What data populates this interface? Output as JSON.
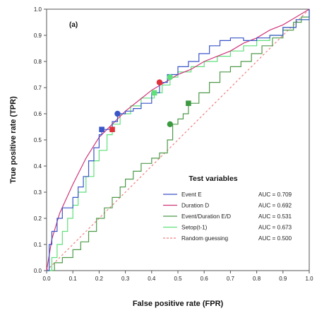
{
  "chart_data": {
    "type": "line",
    "panel_label": "(a)",
    "xlabel": "False positive rate (FPR)",
    "ylabel": "True positive rate (TPR)",
    "xlim": [
      0,
      1
    ],
    "ylim": [
      0,
      1
    ],
    "x_ticks": [
      "0.0",
      "0.1",
      "0.2",
      "0.3",
      "0.4",
      "0.5",
      "0.6",
      "0.7",
      "0.8",
      "0.9",
      "1.0"
    ],
    "y_ticks": [
      "0.0",
      "0.1",
      "0.2",
      "0.3",
      "0.4",
      "0.5",
      "0.6",
      "0.7",
      "0.8",
      "0.9",
      "1.0"
    ],
    "legend": {
      "title": "Test variables",
      "placement": "bottom-right"
    },
    "series": [
      {
        "name": "Event E",
        "auc": "AUC = 0.709",
        "color": "#3a55c8",
        "style": "step",
        "points": [
          [
            0,
            0
          ],
          [
            0.01,
            0.1
          ],
          [
            0.02,
            0.15
          ],
          [
            0.04,
            0.2
          ],
          [
            0.06,
            0.24
          ],
          [
            0.09,
            0.24
          ],
          [
            0.1,
            0.28
          ],
          [
            0.12,
            0.32
          ],
          [
            0.14,
            0.36
          ],
          [
            0.16,
            0.42
          ],
          [
            0.18,
            0.47
          ],
          [
            0.2,
            0.52
          ],
          [
            0.21,
            0.54
          ],
          [
            0.25,
            0.57
          ],
          [
            0.27,
            0.6
          ],
          [
            0.3,
            0.61
          ],
          [
            0.33,
            0.62
          ],
          [
            0.36,
            0.64
          ],
          [
            0.4,
            0.68
          ],
          [
            0.43,
            0.72
          ],
          [
            0.46,
            0.75
          ],
          [
            0.5,
            0.78
          ],
          [
            0.54,
            0.8
          ],
          [
            0.58,
            0.83
          ],
          [
            0.62,
            0.86
          ],
          [
            0.66,
            0.88
          ],
          [
            0.7,
            0.89
          ],
          [
            0.75,
            0.88
          ],
          [
            0.8,
            0.89
          ],
          [
            0.85,
            0.9
          ],
          [
            0.9,
            0.93
          ],
          [
            0.95,
            0.96
          ],
          [
            1,
            1
          ]
        ]
      },
      {
        "name": "Duration D",
        "auc": "AUC = 0.692",
        "color": "#d0357a",
        "style": "smooth",
        "points": [
          [
            0,
            0
          ],
          [
            0.02,
            0.12
          ],
          [
            0.05,
            0.22
          ],
          [
            0.1,
            0.33
          ],
          [
            0.15,
            0.43
          ],
          [
            0.2,
            0.51
          ],
          [
            0.25,
            0.56
          ],
          [
            0.3,
            0.61
          ],
          [
            0.35,
            0.65
          ],
          [
            0.4,
            0.69
          ],
          [
            0.45,
            0.72
          ],
          [
            0.5,
            0.75
          ],
          [
            0.55,
            0.77
          ],
          [
            0.6,
            0.8
          ],
          [
            0.65,
            0.82
          ],
          [
            0.7,
            0.84
          ],
          [
            0.75,
            0.87
          ],
          [
            0.8,
            0.89
          ],
          [
            0.85,
            0.92
          ],
          [
            0.9,
            0.94
          ],
          [
            0.95,
            0.97
          ],
          [
            1,
            1
          ]
        ]
      },
      {
        "name": "Event/Duration E/D",
        "auc": "AUC = 0.531",
        "color": "#4e9a4a",
        "style": "step",
        "points": [
          [
            0,
            0
          ],
          [
            0.03,
            0.03
          ],
          [
            0.06,
            0.05
          ],
          [
            0.1,
            0.08
          ],
          [
            0.13,
            0.11
          ],
          [
            0.16,
            0.15
          ],
          [
            0.19,
            0.2
          ],
          [
            0.22,
            0.24
          ],
          [
            0.25,
            0.28
          ],
          [
            0.28,
            0.32
          ],
          [
            0.3,
            0.35
          ],
          [
            0.33,
            0.38
          ],
          [
            0.36,
            0.41
          ],
          [
            0.4,
            0.43
          ],
          [
            0.43,
            0.45
          ],
          [
            0.46,
            0.5
          ],
          [
            0.48,
            0.56
          ],
          [
            0.5,
            0.58
          ],
          [
            0.52,
            0.6
          ],
          [
            0.54,
            0.64
          ],
          [
            0.58,
            0.68
          ],
          [
            0.62,
            0.72
          ],
          [
            0.66,
            0.76
          ],
          [
            0.7,
            0.78
          ],
          [
            0.74,
            0.8
          ],
          [
            0.78,
            0.83
          ],
          [
            0.82,
            0.86
          ],
          [
            0.86,
            0.89
          ],
          [
            0.9,
            0.92
          ],
          [
            0.94,
            0.95
          ],
          [
            0.97,
            0.97
          ],
          [
            1,
            1
          ]
        ]
      },
      {
        "name": "Setop(t-1)",
        "auc": "AUC = 0.673",
        "color": "#5fe07a",
        "style": "step",
        "points": [
          [
            0,
            0
          ],
          [
            0.02,
            0.05
          ],
          [
            0.04,
            0.1
          ],
          [
            0.06,
            0.15
          ],
          [
            0.08,
            0.2
          ],
          [
            0.1,
            0.25
          ],
          [
            0.12,
            0.3
          ],
          [
            0.15,
            0.36
          ],
          [
            0.18,
            0.42
          ],
          [
            0.2,
            0.46
          ],
          [
            0.23,
            0.52
          ],
          [
            0.25,
            0.56
          ],
          [
            0.28,
            0.6
          ],
          [
            0.32,
            0.63
          ],
          [
            0.36,
            0.66
          ],
          [
            0.41,
            0.68
          ],
          [
            0.44,
            0.71
          ],
          [
            0.47,
            0.74
          ],
          [
            0.5,
            0.76
          ],
          [
            0.55,
            0.78
          ],
          [
            0.6,
            0.8
          ],
          [
            0.65,
            0.82
          ],
          [
            0.7,
            0.84
          ],
          [
            0.75,
            0.86
          ],
          [
            0.8,
            0.88
          ],
          [
            0.85,
            0.9
          ],
          [
            0.9,
            0.93
          ],
          [
            0.95,
            0.96
          ],
          [
            1,
            1
          ]
        ]
      },
      {
        "name": "Random guessing",
        "auc": "AUC = 0.500",
        "color": "#f08080",
        "style": "dashed",
        "points": [
          [
            0,
            0
          ],
          [
            1,
            1
          ]
        ]
      }
    ],
    "markers": [
      {
        "series": "Event E",
        "color": "#3a55c8",
        "shape": "square",
        "x": 0.21,
        "y": 0.54
      },
      {
        "series": "Event E",
        "color": "#3a55c8",
        "shape": "circle",
        "x": 0.27,
        "y": 0.6
      },
      {
        "series": "Duration D",
        "color": "#e0303a",
        "shape": "square",
        "x": 0.25,
        "y": 0.54
      },
      {
        "series": "Duration D",
        "color": "#e0303a",
        "shape": "circle",
        "x": 0.43,
        "y": 0.72
      },
      {
        "series": "Event/Duration E/D",
        "color": "#3b9a40",
        "shape": "circle",
        "x": 0.47,
        "y": 0.56
      },
      {
        "series": "Event/Duration E/D",
        "color": "#3b9a40",
        "shape": "square",
        "x": 0.54,
        "y": 0.64
      },
      {
        "series": "Setop(t-1)",
        "color": "#5fe07a",
        "shape": "square",
        "x": 0.41,
        "y": 0.68
      },
      {
        "series": "Setop(t-1)",
        "color": "#5fe07a",
        "shape": "circle",
        "x": 0.47,
        "y": 0.74
      }
    ],
    "grid": false,
    "background": "#ffffff",
    "frame_color": "#555555"
  }
}
